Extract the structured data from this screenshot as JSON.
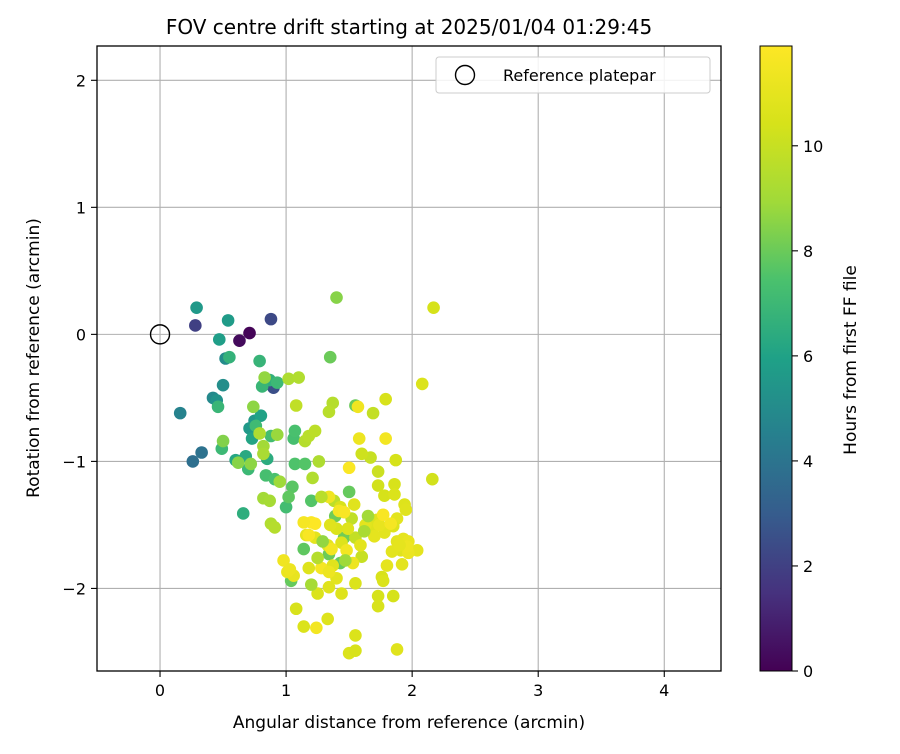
{
  "chart_data": {
    "type": "scatter",
    "title": "FOV centre drift starting at 2025/01/04 01:29:45",
    "xlabel": "Angular distance from reference (arcmin)",
    "ylabel": "Rotation from reference (arcmin)",
    "xlim": [
      -0.5,
      4.45
    ],
    "ylim": [
      -2.65,
      2.27
    ],
    "xticks": [
      0,
      1,
      2,
      3,
      4
    ],
    "yticks": [
      2,
      1,
      0,
      -1,
      -2
    ],
    "grid": true,
    "legend": {
      "placement": "top-right",
      "entries": [
        "Reference platepar"
      ]
    },
    "reference": {
      "x": 0,
      "y": 0
    },
    "colorbar": {
      "label": "Hours from first FF file",
      "range": [
        0,
        11.9
      ],
      "ticks": [
        0,
        2,
        4,
        6,
        8,
        10
      ],
      "colormap": "viridis"
    },
    "points": [
      [
        0.71,
        0.01,
        0.1
      ],
      [
        0.63,
        -0.05,
        0.3
      ],
      [
        0.28,
        0.07,
        2.0
      ],
      [
        0.88,
        0.12,
        2.3
      ],
      [
        0.9,
        -0.42,
        2.5
      ],
      [
        0.26,
        -1.0,
        3.8
      ],
      [
        0.33,
        -0.93,
        3.9
      ],
      [
        0.16,
        -0.62,
        4.6
      ],
      [
        0.42,
        -0.5,
        4.9
      ],
      [
        0.52,
        -0.19,
        5.0
      ],
      [
        0.5,
        -0.4,
        5.1
      ],
      [
        0.45,
        -0.52,
        5.3
      ],
      [
        0.29,
        0.21,
        5.6
      ],
      [
        0.54,
        0.11,
        5.7
      ],
      [
        0.47,
        -0.04,
        5.8
      ],
      [
        0.75,
        -0.68,
        5.5
      ],
      [
        0.71,
        -0.74,
        5.6
      ],
      [
        0.8,
        -0.64,
        6.0
      ],
      [
        0.73,
        -0.82,
        6.1
      ],
      [
        0.6,
        -0.99,
        6.2
      ],
      [
        0.68,
        -0.96,
        6.3
      ],
      [
        0.85,
        -0.98,
        6.4
      ],
      [
        0.66,
        -1.41,
        6.5
      ],
      [
        0.87,
        -0.36,
        6.6
      ],
      [
        0.55,
        -0.18,
        6.7
      ],
      [
        0.79,
        -0.21,
        6.8
      ],
      [
        0.81,
        -0.41,
        6.9
      ],
      [
        0.93,
        -0.38,
        7.0
      ],
      [
        0.76,
        -0.72,
        7.1
      ],
      [
        0.88,
        -0.8,
        7.2
      ],
      [
        0.84,
        -1.11,
        7.3
      ],
      [
        0.91,
        -1.14,
        7.4
      ],
      [
        0.49,
        -0.9,
        7.0
      ],
      [
        0.46,
        -0.57,
        6.9
      ],
      [
        0.7,
        -1.06,
        7.0
      ],
      [
        1.06,
        -0.82,
        7.3
      ],
      [
        1.07,
        -0.76,
        7.4
      ],
      [
        1.07,
        -1.02,
        7.5
      ],
      [
        1.0,
        -1.36,
        7.2
      ],
      [
        1.2,
        -1.31,
        7.6
      ],
      [
        1.05,
        -1.2,
        7.7
      ],
      [
        1.02,
        -1.28,
        7.8
      ],
      [
        1.15,
        -1.02,
        7.6
      ],
      [
        1.14,
        -1.69,
        7.8
      ],
      [
        1.04,
        -1.94,
        7.9
      ],
      [
        1.35,
        -0.18,
        8.0
      ],
      [
        1.5,
        -1.24,
        7.9
      ],
      [
        1.55,
        -0.56,
        8.0
      ],
      [
        1.39,
        -1.43,
        8.1
      ],
      [
        1.43,
        -1.8,
        7.9
      ],
      [
        1.46,
        -1.6,
        8.1
      ],
      [
        1.34,
        -1.73,
        8.0
      ],
      [
        1.4,
        0.29,
        8.5
      ],
      [
        0.5,
        -0.84,
        8.4
      ],
      [
        0.62,
        -1.01,
        8.5
      ],
      [
        0.72,
        -1.02,
        8.6
      ],
      [
        0.74,
        -0.57,
        8.6
      ],
      [
        0.83,
        -0.34,
        8.7
      ],
      [
        0.93,
        -0.79,
        8.8
      ],
      [
        0.95,
        -1.16,
        8.9
      ],
      [
        0.82,
        -1.29,
        9.0
      ],
      [
        0.87,
        -1.31,
        9.1
      ],
      [
        0.82,
        -0.88,
        9.0
      ],
      [
        0.82,
        -0.94,
        9.2
      ],
      [
        0.79,
        -0.78,
        9.3
      ],
      [
        0.88,
        -1.49,
        9.4
      ],
      [
        0.91,
        -1.52,
        9.5
      ],
      [
        1.02,
        -0.35,
        9.3
      ],
      [
        1.1,
        -0.34,
        9.4
      ],
      [
        1.15,
        -0.84,
        9.5
      ],
      [
        1.18,
        -0.8,
        9.6
      ],
      [
        1.23,
        -0.76,
        9.7
      ],
      [
        1.08,
        -0.56,
        9.8
      ],
      [
        1.26,
        -1.0,
        9.3
      ],
      [
        1.21,
        -1.13,
        9.4
      ],
      [
        1.37,
        -0.54,
        9.5
      ],
      [
        1.34,
        -0.61,
        9.6
      ],
      [
        1.38,
        -1.31,
        9.7
      ],
      [
        1.52,
        -1.45,
        9.8
      ],
      [
        1.55,
        -1.6,
        9.9
      ],
      [
        1.6,
        -1.75,
        10.0
      ],
      [
        1.69,
        -0.62,
        9.9
      ],
      [
        1.67,
        -0.97,
        10.0
      ],
      [
        1.73,
        -1.08,
        10.1
      ],
      [
        1.6,
        -0.94,
        10.2
      ],
      [
        1.73,
        -1.19,
        10.3
      ],
      [
        1.78,
        -1.27,
        10.4
      ],
      [
        1.79,
        -0.51,
        10.5
      ],
      [
        2.08,
        -0.39,
        10.6
      ],
      [
        2.17,
        0.21,
        10.4
      ],
      [
        2.16,
        -1.14,
        10.3
      ],
      [
        1.87,
        -0.99,
        10.4
      ],
      [
        1.86,
        -1.18,
        10.5
      ],
      [
        1.86,
        -1.26,
        10.6
      ],
      [
        1.94,
        -1.34,
        10.7
      ],
      [
        1.95,
        -1.38,
        10.8
      ],
      [
        1.88,
        -1.45,
        10.9
      ],
      [
        1.85,
        -1.51,
        10.7
      ],
      [
        1.72,
        -1.46,
        10.8
      ],
      [
        1.78,
        -1.56,
        10.9
      ],
      [
        1.66,
        -1.47,
        10.6
      ],
      [
        1.69,
        -1.52,
        10.7
      ],
      [
        1.59,
        -1.66,
        10.9
      ],
      [
        1.54,
        -1.34,
        10.8
      ],
      [
        1.49,
        -1.53,
        10.7
      ],
      [
        1.43,
        -1.36,
        10.5
      ],
      [
        1.4,
        -1.53,
        10.6
      ],
      [
        1.44,
        -1.64,
        10.7
      ],
      [
        1.35,
        -1.5,
        10.8
      ],
      [
        1.33,
        -1.66,
        10.9
      ],
      [
        1.37,
        -1.82,
        10.8
      ],
      [
        1.4,
        -1.92,
        10.9
      ],
      [
        1.55,
        -1.96,
        10.6
      ],
      [
        1.44,
        -2.04,
        10.7
      ],
      [
        1.34,
        -1.99,
        10.8
      ],
      [
        1.25,
        -2.04,
        10.6
      ],
      [
        1.18,
        -1.84,
        10.7
      ],
      [
        1.23,
        -1.6,
        10.9
      ],
      [
        1.16,
        -1.58,
        11.0
      ],
      [
        1.06,
        -1.9,
        11.1
      ],
      [
        1.01,
        -1.87,
        11.2
      ],
      [
        1.08,
        -2.16,
        10.5
      ],
      [
        1.14,
        -2.3,
        10.6
      ],
      [
        1.33,
        -2.24,
        10.7
      ],
      [
        1.5,
        -2.51,
        10.6
      ],
      [
        1.55,
        -2.49,
        10.5
      ],
      [
        1.55,
        -2.37,
        10.6
      ],
      [
        1.73,
        -2.06,
        10.4
      ],
      [
        1.73,
        -2.14,
        10.5
      ],
      [
        1.76,
        -1.91,
        10.5
      ],
      [
        1.77,
        -1.94,
        10.6
      ],
      [
        1.85,
        -2.06,
        10.4
      ],
      [
        1.88,
        -2.48,
        10.8
      ],
      [
        1.8,
        -1.82,
        11.0
      ],
      [
        1.92,
        -1.81,
        10.9
      ],
      [
        1.91,
        -1.7,
        10.8
      ],
      [
        1.88,
        -1.63,
        10.9
      ],
      [
        1.93,
        -1.61,
        11.0
      ],
      [
        1.97,
        -1.63,
        11.1
      ],
      [
        2.04,
        -1.7,
        11.0
      ],
      [
        1.97,
        -1.72,
        11.2
      ],
      [
        1.96,
        -1.67,
        11.3
      ],
      [
        1.84,
        -1.71,
        10.9
      ],
      [
        1.9,
        -1.66,
        11.0
      ],
      [
        1.7,
        -1.59,
        11.0
      ],
      [
        1.74,
        -1.5,
        11.1
      ],
      [
        1.63,
        -1.5,
        10.9
      ],
      [
        1.58,
        -0.82,
        11.3
      ],
      [
        1.57,
        -0.57,
        11.4
      ],
      [
        1.79,
        -0.82,
        11.5
      ],
      [
        1.83,
        -1.49,
        11.6
      ],
      [
        1.77,
        -1.42,
        11.7
      ],
      [
        1.53,
        -1.8,
        11.3
      ],
      [
        1.48,
        -1.7,
        11.5
      ],
      [
        1.42,
        -1.39,
        11.6
      ],
      [
        1.46,
        -1.4,
        11.7
      ],
      [
        1.5,
        -1.05,
        11.8
      ],
      [
        1.34,
        -1.28,
        11.4
      ],
      [
        1.36,
        -1.69,
        11.5
      ],
      [
        1.28,
        -1.84,
        11.6
      ],
      [
        1.34,
        -1.87,
        11.3
      ],
      [
        1.2,
        -1.48,
        11.8
      ],
      [
        1.23,
        -1.49,
        11.9
      ],
      [
        1.18,
        -1.58,
        11.7
      ],
      [
        1.14,
        -1.48,
        11.6
      ],
      [
        1.24,
        -2.31,
        11.5
      ],
      [
        0.98,
        -1.78,
        11.4
      ],
      [
        1.03,
        -1.85,
        11.3
      ],
      [
        1.28,
        -1.28,
        9.6
      ],
      [
        1.65,
        -1.43,
        9.0
      ],
      [
        1.62,
        -1.55,
        9.2
      ],
      [
        1.25,
        -1.76,
        9.5
      ],
      [
        1.2,
        -1.97,
        9.1
      ],
      [
        1.47,
        -1.78,
        8.9
      ],
      [
        1.29,
        -1.63,
        8.7
      ]
    ]
  }
}
